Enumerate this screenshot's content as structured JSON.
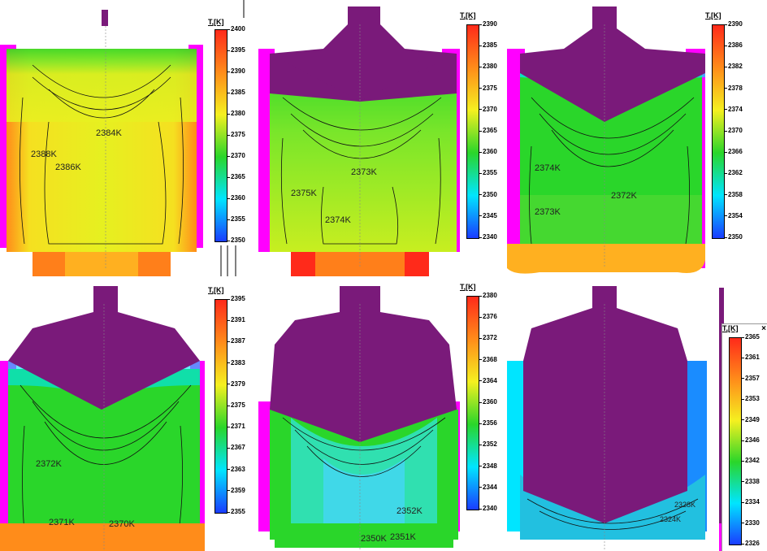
{
  "legend_title": "T,[K]",
  "panels": [
    {
      "id": "p1",
      "ticks": [
        "2400",
        "2395",
        "2390",
        "2385",
        "2380",
        "2375",
        "2370",
        "2365",
        "2360",
        "2355",
        "2350"
      ],
      "labels": [
        "2384K",
        "2388K",
        "2386K"
      ]
    },
    {
      "id": "p2",
      "ticks": [
        "2390",
        "2385",
        "2380",
        "2375",
        "2370",
        "2365",
        "2360",
        "2355",
        "2350",
        "2345",
        "2340"
      ],
      "labels": [
        "2373K",
        "2375K",
        "2374K"
      ]
    },
    {
      "id": "p3",
      "ticks": [
        "2390",
        "2386",
        "2382",
        "2378",
        "2374",
        "2370",
        "2366",
        "2362",
        "2358",
        "2354",
        "2350"
      ],
      "labels": [
        "2374K",
        "2372K",
        "2373K"
      ]
    },
    {
      "id": "p4",
      "ticks": [
        "2395",
        "2391",
        "2387",
        "2383",
        "2379",
        "2375",
        "2371",
        "2367",
        "2363",
        "2359",
        "2355"
      ],
      "labels": [
        "2372K",
        "2371K",
        "2370K"
      ]
    },
    {
      "id": "p5",
      "ticks": [
        "2380",
        "2376",
        "2372",
        "2368",
        "2364",
        "2360",
        "2356",
        "2352",
        "2348",
        "2344",
        "2340"
      ],
      "labels": [
        "2352K",
        "2350K",
        "2351K"
      ]
    },
    {
      "id": "p6",
      "ticks": [
        "2365",
        "2361",
        "2357",
        "2353",
        "2349",
        "2346",
        "2342",
        "2338",
        "2334",
        "2330",
        "2326"
      ],
      "labels": [
        "2328K",
        "2324K"
      ]
    }
  ],
  "close_glyph": "×",
  "colors": {
    "solid": "#7a1a7a",
    "hot": "#ff2a1a",
    "magenta": "#ff00ff",
    "cyan": "#00e5ff",
    "yellow": "#f5f020",
    "green": "#2ad62a"
  }
}
